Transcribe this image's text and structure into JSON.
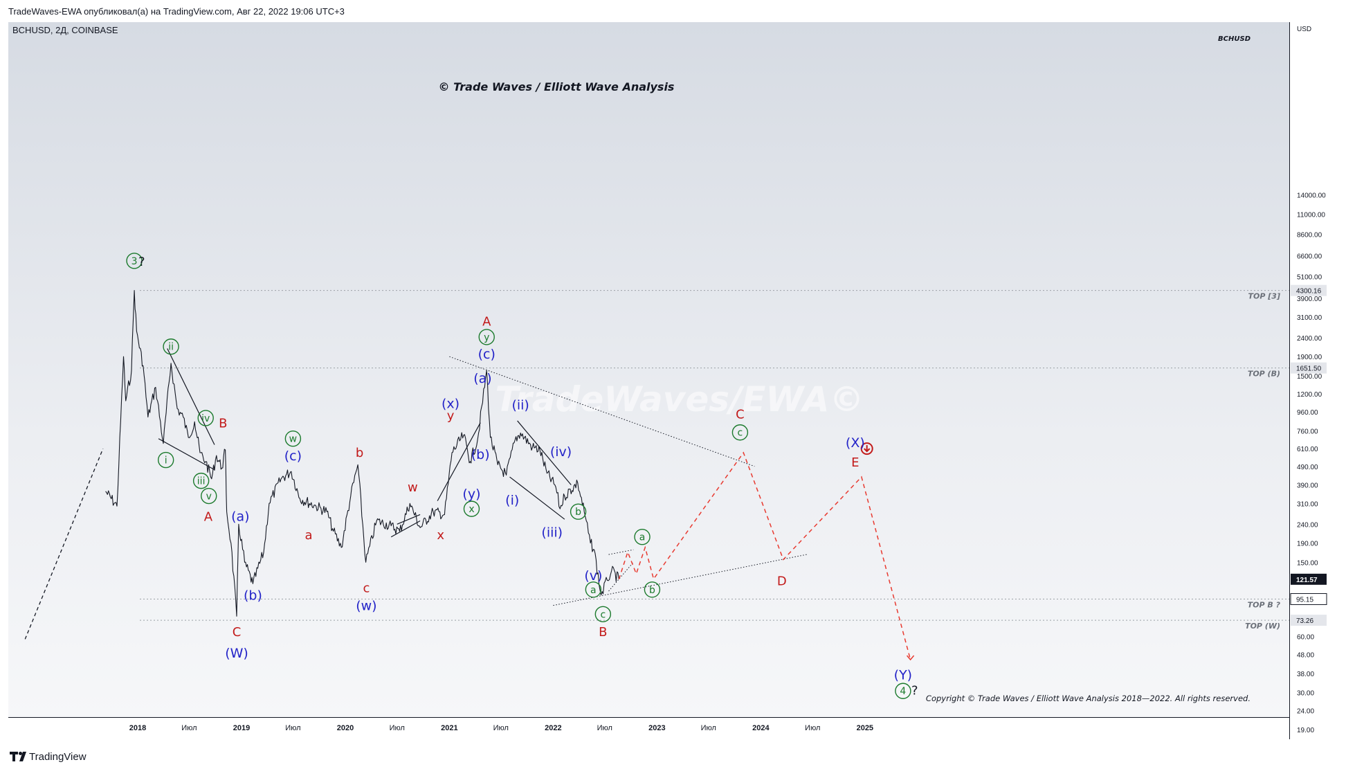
{
  "header": {
    "publisher_line": "TradeWaves-EWA опубликовал(а) на TradingView.com, Авг 22, 2022 19:06 UTC+3",
    "symbol_line": "BCHUSD, 2Д, COINBASE",
    "top_right_symbol": "BCHUSD"
  },
  "watermark": {
    "top_text": "© Trade Waves / Elliott Wave Analysis",
    "center_text": "TradeWaves/EWA©",
    "copyright": "Copyright © Trade Waves / Elliott Wave Analysis 2018—2022. All rights reserved."
  },
  "footer": {
    "logo_text": "TradingView"
  },
  "colors": {
    "green": "#1b7a2c",
    "blue": "#2323c8",
    "red": "#c21a1a",
    "projection": "#e8392f"
  },
  "chart_data": {
    "type": "line",
    "title": "BCHUSD, 2Д, COINBASE",
    "y_axis": {
      "unit_label": "USD",
      "scale": "log",
      "ticks": [
        "14000.00",
        "11000.00",
        "8600.00",
        "6600.00",
        "5100.00",
        "3900.00",
        "3100.00",
        "2400.00",
        "1900.00",
        "1500.00",
        "1200.00",
        "960.00",
        "760.00",
        "610.00",
        "490.00",
        "390.00",
        "310.00",
        "240.00",
        "190.00",
        "150.00",
        "95.15",
        "60.00",
        "48.00",
        "38.00",
        "30.00",
        "24.00",
        "19.00"
      ],
      "price_labels": [
        {
          "value": "4300.16",
          "price": 4300,
          "style": "gray"
        },
        {
          "value": "1651.50",
          "price": 1651,
          "style": "gray"
        },
        {
          "value": "121.57",
          "price": 121.57,
          "style": "dark"
        },
        {
          "value": "95.15",
          "price": 95.15,
          "style": "outline"
        },
        {
          "value": "73.26",
          "price": 73.26,
          "style": "gray"
        }
      ]
    },
    "x_axis": {
      "ticks": [
        "2018",
        "Июл",
        "2019",
        "Июл",
        "2020",
        "Июл",
        "2021",
        "Июл",
        "2022",
        "Июл",
        "2023",
        "Июл",
        "2024",
        "Июл",
        "2025"
      ]
    },
    "horizontal_levels": [
      {
        "label": "TOP [3]",
        "price": 4300
      },
      {
        "label": "TOP (B)",
        "price": 1651
      },
      {
        "label": "TOP B ?",
        "price": 95.15
      },
      {
        "label": "TOP (W)",
        "price": 73.26
      }
    ],
    "series": [
      {
        "type": "price-line",
        "points": [
          [
            "2017-09-10",
            360
          ],
          [
            "2017-10-20",
            300
          ],
          [
            "2017-11-12",
            1900
          ],
          [
            "2017-11-20",
            1100
          ],
          [
            "2017-12-10",
            1600
          ],
          [
            "2017-12-20",
            4300
          ],
          [
            "2017-12-28",
            2600
          ],
          [
            "2018-01-20",
            1700
          ],
          [
            "2018-02-06",
            900
          ],
          [
            "2018-03-05",
            1300
          ],
          [
            "2018-04-01",
            650
          ],
          [
            "2018-04-28",
            1750
          ],
          [
            "2018-05-20",
            1000
          ],
          [
            "2018-06-10",
            900
          ],
          [
            "2018-06-28",
            700
          ],
          [
            "2018-07-20",
            850
          ],
          [
            "2018-08-08",
            580
          ],
          [
            "2018-08-28",
            520
          ],
          [
            "2018-09-18",
            420
          ],
          [
            "2018-10-05",
            560
          ],
          [
            "2018-10-24",
            480
          ],
          [
            "2018-11-05",
            600
          ],
          [
            "2018-11-10",
            280
          ],
          [
            "2018-11-25",
            190
          ],
          [
            "2018-12-15",
            77
          ],
          [
            "2018-12-22",
            240
          ],
          [
            "2019-01-12",
            150
          ],
          [
            "2019-02-10",
            115
          ],
          [
            "2019-03-20",
            170
          ],
          [
            "2019-04-08",
            310
          ],
          [
            "2019-05-20",
            420
          ],
          [
            "2019-06-25",
            460
          ],
          [
            "2019-07-25",
            330
          ],
          [
            "2019-09-20",
            300
          ],
          [
            "2019-10-28",
            280
          ],
          [
            "2019-11-20",
            220
          ],
          [
            "2019-12-18",
            180
          ],
          [
            "2020-01-20",
            340
          ],
          [
            "2020-02-14",
            500
          ],
          [
            "2020-03-13",
            150
          ],
          [
            "2020-04-20",
            250
          ],
          [
            "2020-06-10",
            235
          ],
          [
            "2020-07-10",
            220
          ],
          [
            "2020-08-15",
            310
          ],
          [
            "2020-09-20",
            230
          ],
          [
            "2020-11-05",
            280
          ],
          [
            "2020-12-15",
            270
          ],
          [
            "2021-01-10",
            580
          ],
          [
            "2021-02-20",
            720
          ],
          [
            "2021-03-15",
            520
          ],
          [
            "2021-04-10",
            680
          ],
          [
            "2021-05-12",
            1600
          ],
          [
            "2021-05-25",
            700
          ],
          [
            "2021-06-20",
            500
          ],
          [
            "2021-07-20",
            440
          ],
          [
            "2021-08-20",
            680
          ],
          [
            "2021-09-08",
            740
          ],
          [
            "2021-10-20",
            620
          ],
          [
            "2021-11-15",
            600
          ],
          [
            "2021-12-10",
            450
          ],
          [
            "2022-01-10",
            380
          ],
          [
            "2022-01-25",
            290
          ],
          [
            "2022-02-10",
            340
          ],
          [
            "2022-03-28",
            400
          ],
          [
            "2022-04-20",
            280
          ],
          [
            "2022-05-12",
            190
          ],
          [
            "2022-05-25",
            175
          ],
          [
            "2022-06-18",
            100
          ],
          [
            "2022-07-10",
            120
          ],
          [
            "2022-07-25",
            135
          ],
          [
            "2022-08-20",
            121.57
          ]
        ]
      },
      {
        "type": "projection",
        "points": [
          [
            "2022-08-20",
            121.57
          ],
          [
            "2022-09-20",
            170
          ],
          [
            "2022-10-20",
            130
          ],
          [
            "2022-11-20",
            180
          ],
          [
            "2022-12-20",
            122
          ],
          [
            "2023-11-01",
            580
          ],
          [
            "2024-03-20",
            155
          ],
          [
            "2024-12-20",
            430
          ],
          [
            "2025-06-10",
            45
          ]
        ]
      }
    ],
    "trendlines": [
      {
        "style": "solid",
        "from": [
          "2018-04-15",
          2100
        ],
        "to": [
          "2018-09-28",
          640
        ]
      },
      {
        "style": "solid",
        "from": [
          "2018-03-15",
          690
        ],
        "to": [
          "2018-09-28",
          470
        ]
      },
      {
        "style": "solid",
        "from": [
          "2021-08-28",
          860
        ],
        "to": [
          "2022-03-05",
          390
        ]
      },
      {
        "style": "solid",
        "from": [
          "2021-08-01",
          430
        ],
        "to": [
          "2022-02-10",
          255
        ]
      },
      {
        "style": "solid",
        "from": [
          "2020-11-20",
          320
        ],
        "to": [
          "2021-04-20",
          840
        ]
      },
      {
        "style": "solid",
        "from": [
          "2020-07-01",
          240
        ],
        "to": [
          "2020-09-20",
          270
        ]
      },
      {
        "style": "solid",
        "from": [
          "2020-06-10",
          205
        ],
        "to": [
          "2020-09-20",
          250
        ]
      },
      {
        "style": "dotted",
        "from": [
          "2021-01-01",
          1900
        ],
        "to": [
          "2023-12-10",
          490
        ]
      },
      {
        "style": "dotted",
        "from": [
          "2022-01-01",
          88
        ],
        "to": [
          "2024-06-10",
          165
        ]
      },
      {
        "style": "dotted",
        "from": [
          "2022-07-15",
          165
        ],
        "to": [
          "2022-10-10",
          175
        ]
      },
      {
        "style": "dotted",
        "from": [
          "2022-07-15",
          105
        ],
        "to": [
          "2022-10-10",
          150
        ]
      },
      {
        "style": "dashed",
        "from": [
          "2016-12-01",
          58
        ],
        "to": [
          "2017-09-01",
          610
        ]
      }
    ],
    "annotations": [
      {
        "text": "3",
        "circled": true,
        "color": "green",
        "date": "2017-12-20",
        "price": 6200
      },
      {
        "text": "?",
        "color": "dark",
        "date": "2018-01-15",
        "price": 6200
      },
      {
        "text": "ii",
        "circled": true,
        "color": "green",
        "date": "2018-04-28",
        "price": 2150
      },
      {
        "text": "i",
        "circled": true,
        "color": "green",
        "date": "2018-04-10",
        "price": 530
      },
      {
        "text": "iv",
        "circled": true,
        "color": "green",
        "date": "2018-08-28",
        "price": 890
      },
      {
        "text": "iii",
        "circled": true,
        "color": "green",
        "date": "2018-08-12",
        "price": 410
      },
      {
        "text": "v",
        "circled": true,
        "color": "green",
        "date": "2018-09-08",
        "price": 340
      },
      {
        "text": "B",
        "color": "red",
        "date": "2018-10-28",
        "price": 840
      },
      {
        "text": "A",
        "color": "red",
        "date": "2018-09-06",
        "price": 265
      },
      {
        "text": "C",
        "color": "red",
        "date": "2018-12-15",
        "price": 64
      },
      {
        "text": "(W)",
        "color": "blue",
        "date": "2018-12-15",
        "price": 49
      },
      {
        "text": "(a)",
        "color": "blue",
        "date": "2018-12-28",
        "price": 265
      },
      {
        "text": "(b)",
        "color": "blue",
        "date": "2019-02-10",
        "price": 100
      },
      {
        "text": "w",
        "circled": true,
        "color": "green",
        "date": "2019-07-01",
        "price": 690
      },
      {
        "text": "(c)",
        "color": "blue",
        "date": "2019-07-01",
        "price": 560
      },
      {
        "text": "a",
        "color": "red",
        "date": "2019-08-25",
        "price": 212
      },
      {
        "text": "b",
        "color": "red",
        "date": "2020-02-20",
        "price": 585
      },
      {
        "text": "c",
        "color": "red",
        "date": "2020-03-15",
        "price": 110
      },
      {
        "text": "(w)",
        "color": "blue",
        "date": "2020-03-15",
        "price": 88
      },
      {
        "text": "w",
        "color": "red",
        "date": "2020-08-25",
        "price": 382
      },
      {
        "text": "x",
        "color": "red",
        "date": "2020-12-01",
        "price": 212
      },
      {
        "text": "(x)",
        "color": "blue",
        "date": "2021-01-05",
        "price": 1070
      },
      {
        "text": "y",
        "color": "red",
        "date": "2021-01-05",
        "price": 925
      },
      {
        "text": "(y)",
        "color": "blue",
        "date": "2021-03-20",
        "price": 350
      },
      {
        "text": "x",
        "circled": true,
        "color": "green",
        "date": "2021-03-20",
        "price": 290
      },
      {
        "text": "A",
        "color": "red",
        "date": "2021-05-12",
        "price": 2960
      },
      {
        "text": "y",
        "circled": true,
        "color": "green",
        "date": "2021-05-12",
        "price": 2420
      },
      {
        "text": "(c)",
        "color": "blue",
        "date": "2021-05-12",
        "price": 1970
      },
      {
        "text": "(a)",
        "color": "blue",
        "date": "2021-04-28",
        "price": 1460
      },
      {
        "text": "(b)",
        "color": "blue",
        "date": "2021-04-20",
        "price": 570
      },
      {
        "text": "(ii)",
        "color": "blue",
        "date": "2021-09-08",
        "price": 1050
      },
      {
        "text": "(i)",
        "color": "blue",
        "date": "2021-08-10",
        "price": 325
      },
      {
        "text": "(iv)",
        "color": "blue",
        "date": "2022-01-28",
        "price": 590
      },
      {
        "text": "(iii)",
        "color": "blue",
        "date": "2021-12-28",
        "price": 218
      },
      {
        "text": "b",
        "circled": true,
        "color": "green",
        "date": "2022-03-30",
        "price": 280
      },
      {
        "text": "(v)",
        "color": "blue",
        "date": "2022-05-22",
        "price": 128
      },
      {
        "text": "a",
        "circled": true,
        "color": "green",
        "date": "2022-05-22",
        "price": 107
      },
      {
        "text": "c",
        "circled": true,
        "color": "green",
        "date": "2022-06-25",
        "price": 79
      },
      {
        "text": "B",
        "color": "red",
        "date": "2022-06-25",
        "price": 64
      },
      {
        "text": "a",
        "circled": true,
        "color": "green",
        "date": "2022-11-10",
        "price": 205
      },
      {
        "text": "b",
        "circled": true,
        "color": "green",
        "date": "2022-12-15",
        "price": 107
      },
      {
        "text": "C",
        "color": "red",
        "date": "2023-10-20",
        "price": 940
      },
      {
        "text": "c",
        "circled": true,
        "color": "green",
        "date": "2023-10-20",
        "price": 745
      },
      {
        "text": "D",
        "color": "red",
        "date": "2024-03-15",
        "price": 120
      },
      {
        "text": "(X)",
        "color": "blue",
        "date": "2024-11-28",
        "price": 660
      },
      {
        "text": "E",
        "color": "red",
        "date": "2024-11-28",
        "price": 520
      },
      {
        "text": "(Y)",
        "color": "blue",
        "date": "2025-05-15",
        "price": 37.5
      },
      {
        "text": "4",
        "circled": true,
        "color": "green",
        "date": "2025-05-15",
        "price": 30.6
      },
      {
        "text": "?",
        "color": "dark",
        "date": "2025-06-25",
        "price": 31
      }
    ]
  }
}
